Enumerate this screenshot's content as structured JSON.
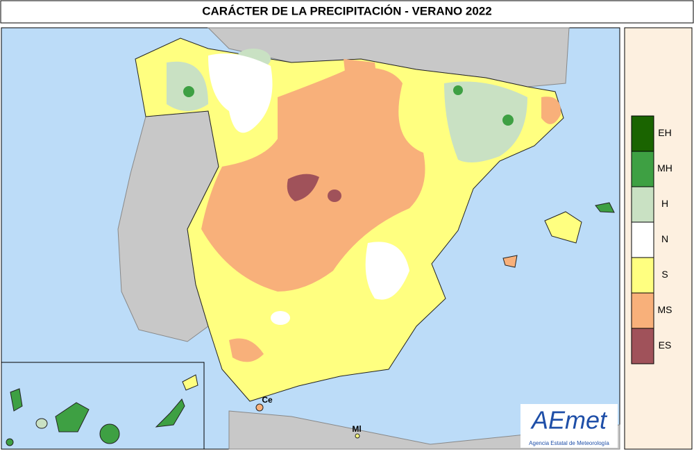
{
  "title": "CARÁCTER DE LA PRECIPITACIÓN - VERANO  2022",
  "legend": {
    "items": [
      {
        "label": "EH",
        "color": "#1a6400"
      },
      {
        "label": "MH",
        "color": "#3ea043"
      },
      {
        "label": "H",
        "color": "#c9e1c3"
      },
      {
        "label": "N",
        "color": "#ffffff"
      },
      {
        "label": "S",
        "color": "#ffff80"
      },
      {
        "label": "MS",
        "color": "#f8b07a"
      },
      {
        "label": "ES",
        "color": "#a0525a"
      }
    ]
  },
  "places": [
    "Ce",
    "Ml"
  ],
  "logo": {
    "name": "AEmet",
    "subtitle": "Agencia Estatal de Meteorología"
  }
}
